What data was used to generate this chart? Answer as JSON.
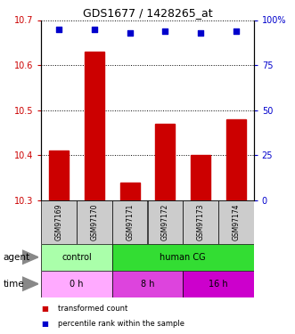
{
  "title": "GDS1677 / 1428265_at",
  "samples": [
    "GSM97169",
    "GSM97170",
    "GSM97171",
    "GSM97172",
    "GSM97173",
    "GSM97174"
  ],
  "transformed_counts": [
    10.41,
    10.63,
    10.34,
    10.47,
    10.4,
    10.48
  ],
  "percentile_ranks": [
    95,
    95,
    93,
    94,
    93,
    94
  ],
  "ylim_left": [
    10.3,
    10.7
  ],
  "ylim_right": [
    0,
    100
  ],
  "yticks_left": [
    10.3,
    10.4,
    10.5,
    10.6,
    10.7
  ],
  "yticks_right": [
    0,
    25,
    50,
    75,
    100
  ],
  "bar_color": "#cc0000",
  "scatter_color": "#0000cc",
  "left_axis_color": "#cc0000",
  "right_axis_color": "#0000cc",
  "agent_groups": [
    {
      "label": "control",
      "span": [
        0,
        2
      ],
      "color": "#aaffaa"
    },
    {
      "label": "human CG",
      "span": [
        2,
        6
      ],
      "color": "#33dd33"
    }
  ],
  "time_groups": [
    {
      "label": "0 h",
      "span": [
        0,
        2
      ],
      "color": "#ffaaff"
    },
    {
      "label": "8 h",
      "span": [
        2,
        4
      ],
      "color": "#dd44dd"
    },
    {
      "label": "16 h",
      "span": [
        4,
        6
      ],
      "color": "#cc00cc"
    }
  ],
  "sample_bg_color": "#cccccc",
  "grid_color": "#000000",
  "fig_bg_color": "#ffffff",
  "legend_items": [
    {
      "label": "transformed count",
      "color": "#cc0000"
    },
    {
      "label": "percentile rank within the sample",
      "color": "#0000cc"
    }
  ]
}
